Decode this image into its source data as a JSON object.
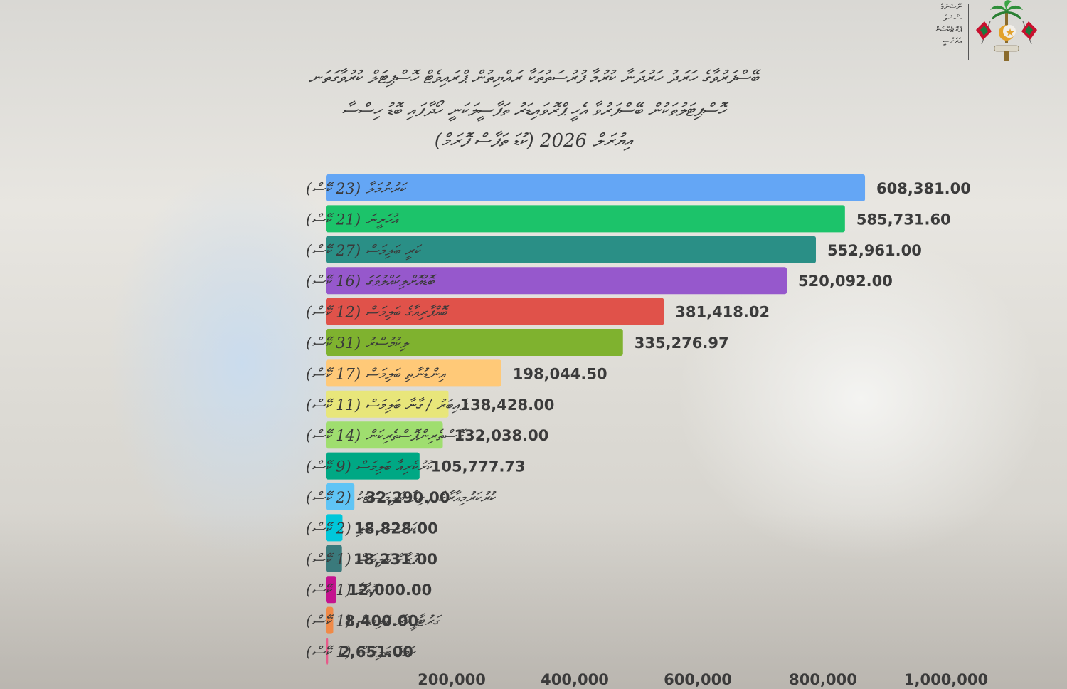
{
  "header": {
    "logo_text": [
      "ނޭޝަނަލް",
      "ސޯޝަލް",
      "ޕްރޮޓެކްޝަން",
      "އެޖެންސީ"
    ],
    "title_lines": [
      "ބޭސްފަރުވާގެ ހަރަދު ހަރުދަނާ ކުރުމާ ފުރުސަތުތަކާ ރައްޔިތުން ޕްރައިވެޓް ހޮސްޕިޓަލް ކުރުވާގަތަނ",
      "ހޮސްޕިޓަލުތަކުން ބޭސްފަރުވާ އެހީ ޕްރޮވައިޑަރު ތަފާސީލަކަނީ ހޯދާފައި ބޮޑު ހިސްސާ"
    ],
    "title_year": "އިޔުރަލް 2026 (ކުޑަ ތަފާސް ފޮރަމް)"
  },
  "chart_data": {
    "type": "bar",
    "orientation": "horizontal",
    "categories": [
      "ކަރުނުމަލާ (23 ކޭސް)",
      "އުހަރީނަ (21 ކޭސް)",
      "ކަރީ ބަލިމަސް (27 ކޭސް)",
      "ބޮޑުއޮށްލިކައްލުވަގަ (16 ކޭސް)",
      "ބޮއްފާރިއާގެ ބަލިމަސް (12 ކޭސް)",
      "ލިކުމުސްރު (31 ކޭސް)",
      "އިންޑުނާތި ބަލިމަސް (17 ކޭސް)",
      "ފެއިބަރު / ގާނާ ބަލިމަސް (11 ކޭސް)",
      "ގޮސްތެރިންޕޮސްތެރިކަން (14 ކޭސް)",
      "ކުރުކެރިއާ ބަލިމަސް (9 ކޭސް)",
      "ކުރުކަރުމިއާރާގެ / ކިލާ ބަލިމަސްޓުކު (2 ކޭސް)",
      "ކަންސަރު ބަލި (2 ކޭސް)",
      "ފުރާގެ ބަލިމަސް (1 ކޭސް)",
      "ގޮވާމާ (1 ކޭސް)",
      "ގަރުޓާޕީކަރޮ ބަލިމަސް (1 ކޭސް)",
      "ހަމުގެ ބަލިމަސް (1 ކޭސް)"
    ],
    "values": [
      608381.0,
      585731.6,
      552961.0,
      520092.0,
      381418.02,
      335276.97,
      198044.5,
      138428.0,
      132038.0,
      105777.73,
      32290.0,
      18828.0,
      18231.0,
      12000.0,
      8400.0,
      2651.0
    ],
    "value_labels": [
      "608,381.00",
      "585,731.60",
      "552,961.00",
      "520,092.00",
      "381,418.02",
      "335,276.97",
      "198,044.50",
      "138,428.00",
      "132,038.00",
      "105,777.73",
      "32,290.00",
      "18,828.00",
      "18,231.00",
      "12,000.00",
      "8,400.00",
      "2,651.00"
    ],
    "colors": [
      "#64a6f5",
      "#1cc36a",
      "#2a8f86",
      "#9658cc",
      "#e0524a",
      "#7fb22f",
      "#ffc978",
      "#e8e67a",
      "#9fde6f",
      "#00a884",
      "#5fc4f5",
      "#00c7da",
      "#3a7a7c",
      "#c4138f",
      "#f08a47",
      "#e85a8a"
    ],
    "x_ticks": [
      200000,
      400000,
      600000,
      800000,
      1000000
    ],
    "x_tick_labels": [
      "200,000",
      "400,000",
      "600,000",
      "800,000",
      "1,000,000"
    ],
    "xlim": [
      0,
      1000000
    ],
    "grid": false,
    "legend": "none"
  }
}
